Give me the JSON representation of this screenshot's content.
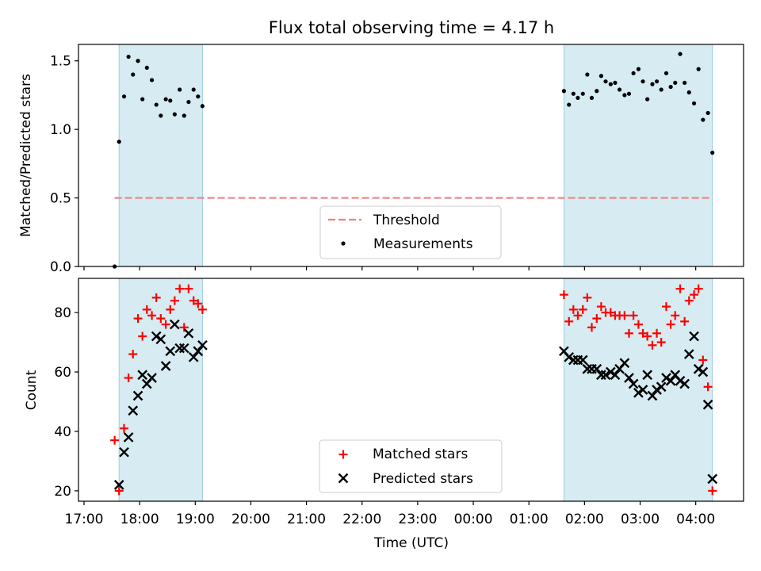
{
  "chart_data": [
    {
      "type": "scatter",
      "title": "Flux total observing time = 4.17 h",
      "xlabel": "",
      "ylabel": "Matched/Predicted stars",
      "ylim": [
        0,
        1.62
      ],
      "yticks": [
        0.0,
        0.5,
        1.0,
        1.5
      ],
      "ytick_labels": [
        "0.0",
        "0.5",
        "1.0",
        "1.5"
      ],
      "shaded_ranges": [
        [
          17.63,
          19.13
        ],
        [
          25.63,
          28.3
        ]
      ],
      "threshold": {
        "name": "Threshold",
        "value": 0.5,
        "x_range": [
          17.55,
          28.25
        ],
        "color": "#f08080"
      },
      "legend": {
        "position": "lower-center",
        "entries": [
          "Threshold",
          "Measurements"
        ]
      },
      "series": [
        {
          "name": "Measurements",
          "color": "#000000",
          "x": [
            17.55,
            17.63,
            17.72,
            17.8,
            17.88,
            17.97,
            18.05,
            18.13,
            18.22,
            18.3,
            18.38,
            18.47,
            18.55,
            18.63,
            18.72,
            18.8,
            18.88,
            18.97,
            19.05,
            19.13,
            25.63,
            25.72,
            25.8,
            25.88,
            25.97,
            26.05,
            26.13,
            26.22,
            26.3,
            26.38,
            26.47,
            26.55,
            26.63,
            26.72,
            26.8,
            26.88,
            26.97,
            27.05,
            27.13,
            27.22,
            27.3,
            27.38,
            27.47,
            27.55,
            27.63,
            27.72,
            27.8,
            27.88,
            27.97,
            28.05,
            28.13,
            28.22,
            28.3
          ],
          "y": [
            0.0,
            0.91,
            1.24,
            1.53,
            1.4,
            1.5,
            1.22,
            1.45,
            1.36,
            1.18,
            1.1,
            1.22,
            1.21,
            1.11,
            1.29,
            1.1,
            1.2,
            1.29,
            1.24,
            1.17,
            1.28,
            1.18,
            1.26,
            1.23,
            1.26,
            1.4,
            1.23,
            1.28,
            1.39,
            1.35,
            1.33,
            1.34,
            1.29,
            1.25,
            1.26,
            1.41,
            1.44,
            1.35,
            1.22,
            1.33,
            1.35,
            1.29,
            1.41,
            1.31,
            1.34,
            1.55,
            1.34,
            1.27,
            1.19,
            1.44,
            1.07,
            1.12,
            0.83
          ]
        }
      ]
    },
    {
      "type": "scatter",
      "title": "",
      "xlabel": "Time (UTC)",
      "ylabel": "Count",
      "ylim": [
        16.5,
        91.5
      ],
      "yticks": [
        20,
        40,
        60,
        80
      ],
      "ytick_labels": [
        "20",
        "40",
        "60",
        "80"
      ],
      "xlim": [
        16.9,
        28.86
      ],
      "xticks": [
        17,
        18,
        19,
        20,
        21,
        22,
        23,
        24,
        25,
        26,
        27,
        28
      ],
      "xtick_labels": [
        "17:00",
        "18:00",
        "19:00",
        "20:00",
        "21:00",
        "22:00",
        "23:00",
        "00:00",
        "01:00",
        "02:00",
        "03:00",
        "04:00"
      ],
      "shaded_ranges": [
        [
          17.63,
          19.13
        ],
        [
          25.63,
          28.3
        ]
      ],
      "legend": {
        "position": "lower-center",
        "entries": [
          "Matched stars",
          "Predicted stars"
        ]
      },
      "series": [
        {
          "name": "Matched stars",
          "color": "#ff0000",
          "marker": "+",
          "x": [
            17.55,
            17.63,
            17.72,
            17.8,
            17.88,
            17.97,
            18.05,
            18.13,
            18.22,
            18.3,
            18.38,
            18.47,
            18.55,
            18.63,
            18.72,
            18.8,
            18.88,
            18.97,
            19.05,
            19.13,
            25.63,
            25.72,
            25.8,
            25.88,
            25.97,
            26.05,
            26.13,
            26.22,
            26.3,
            26.38,
            26.47,
            26.55,
            26.63,
            26.72,
            26.8,
            26.88,
            26.97,
            27.05,
            27.13,
            27.22,
            27.3,
            27.38,
            27.47,
            27.55,
            27.63,
            27.72,
            27.8,
            27.88,
            27.97,
            28.05,
            28.13,
            28.22,
            28.3
          ],
          "y": [
            37,
            20,
            41,
            58,
            66,
            78,
            72,
            81,
            79,
            85,
            78,
            76,
            81,
            84,
            88,
            75,
            88,
            84,
            83,
            81,
            86,
            77,
            81,
            79,
            81,
            85,
            75,
            78,
            82,
            80,
            80,
            79,
            79,
            79,
            73,
            79,
            76,
            73,
            72,
            69,
            73,
            70,
            82,
            76,
            79,
            88,
            77,
            84,
            86,
            88,
            64,
            55,
            20
          ]
        },
        {
          "name": "Predicted stars",
          "color": "#000000",
          "marker": "x",
          "x": [
            17.63,
            17.72,
            17.8,
            17.88,
            17.97,
            18.05,
            18.13,
            18.22,
            18.3,
            18.38,
            18.47,
            18.55,
            18.63,
            18.72,
            18.8,
            18.88,
            18.97,
            19.05,
            19.13,
            25.63,
            25.72,
            25.8,
            25.88,
            25.97,
            26.05,
            26.13,
            26.22,
            26.3,
            26.38,
            26.47,
            26.55,
            26.63,
            26.72,
            26.8,
            26.88,
            26.97,
            27.05,
            27.13,
            27.22,
            27.3,
            27.38,
            27.47,
            27.55,
            27.63,
            27.72,
            27.8,
            27.88,
            27.97,
            28.05,
            28.13,
            28.22,
            28.3
          ],
          "y": [
            22,
            33,
            38,
            47,
            52,
            59,
            56,
            58,
            72,
            71,
            62,
            67,
            76,
            68,
            68,
            73,
            65,
            67,
            69,
            67,
            65,
            64,
            64,
            64,
            61,
            61,
            61,
            59,
            59,
            60,
            59,
            61,
            63,
            58,
            56,
            53,
            54,
            59,
            52,
            54,
            55,
            58,
            57,
            59,
            57,
            56,
            66,
            72,
            61,
            60,
            49,
            24
          ]
        }
      ]
    }
  ]
}
